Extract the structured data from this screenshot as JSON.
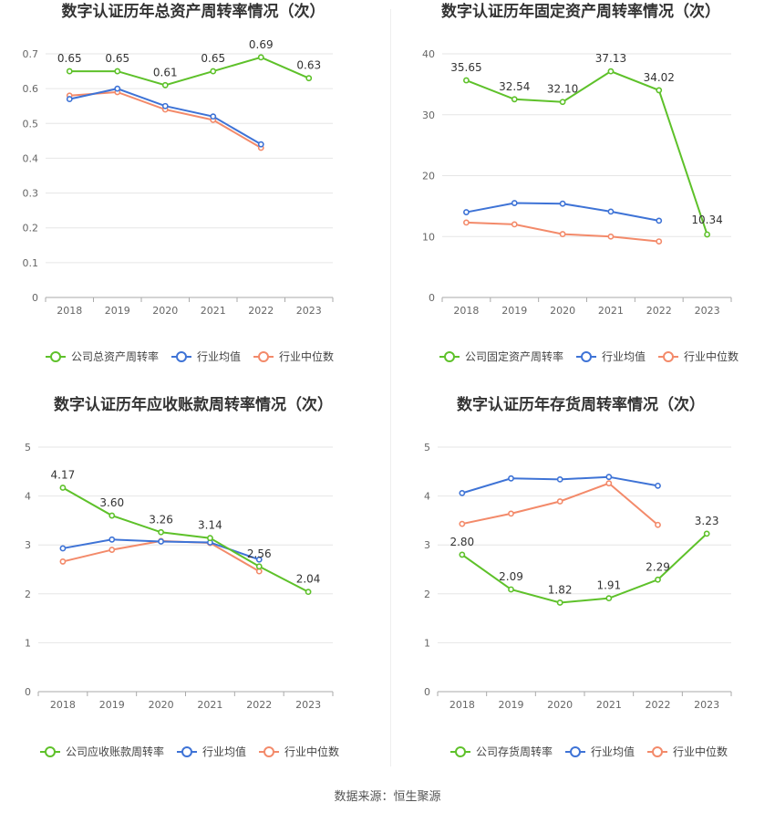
{
  "footer": "数据来源：恒生聚源",
  "legend_common": [
    "行业均值",
    "行业中位数"
  ],
  "colors": {
    "company": "#5ec12a",
    "avg": "#3e73d6",
    "median": "#f38a6a"
  },
  "chart_data": [
    {
      "type": "line",
      "title": "数字认证历年总资产周转率情况（次）",
      "categories": [
        "2018",
        "2019",
        "2020",
        "2021",
        "2022",
        "2023"
      ],
      "ylim": [
        0,
        0.7
      ],
      "yticks": [
        "0",
        "0.1",
        "0.2",
        "0.3",
        "0.4",
        "0.5",
        "0.6",
        "0.7"
      ],
      "ytick_values": [
        0,
        0.1,
        0.2,
        0.3,
        0.4,
        0.5,
        0.6,
        0.7
      ],
      "series": [
        {
          "name": "公司总资产周转率",
          "values": [
            0.65,
            0.65,
            0.61,
            0.65,
            0.69,
            0.63
          ],
          "labels": [
            "0.65",
            "0.65",
            "0.61",
            "0.65",
            "0.69",
            "0.63"
          ]
        },
        {
          "name": "行业均值",
          "values": [
            0.57,
            0.6,
            0.55,
            0.52,
            0.44,
            null
          ]
        },
        {
          "name": "行业中位数",
          "values": [
            0.58,
            0.59,
            0.54,
            0.51,
            0.43,
            null
          ]
        }
      ]
    },
    {
      "type": "line",
      "title": "数字认证历年固定资产周转率情况（次）",
      "categories": [
        "2018",
        "2019",
        "2020",
        "2021",
        "2022",
        "2023"
      ],
      "ylim": [
        0,
        40
      ],
      "yticks": [
        "0",
        "10",
        "20",
        "30",
        "40"
      ],
      "ytick_values": [
        0,
        10,
        20,
        30,
        40
      ],
      "series": [
        {
          "name": "公司固定资产周转率",
          "values": [
            35.65,
            32.54,
            32.1,
            37.13,
            34.02,
            10.34
          ],
          "labels": [
            "35.65",
            "32.54",
            "32.10",
            "37.13",
            "34.02",
            "10.34"
          ]
        },
        {
          "name": "行业均值",
          "values": [
            14.0,
            15.5,
            15.4,
            14.1,
            12.6,
            null
          ]
        },
        {
          "name": "行业中位数",
          "values": [
            12.3,
            12.0,
            10.4,
            10.0,
            9.2,
            null
          ]
        }
      ]
    },
    {
      "type": "line",
      "title": "数字认证历年应收账款周转率情况（次）",
      "categories": [
        "2018",
        "2019",
        "2020",
        "2021",
        "2022",
        "2023"
      ],
      "ylim": [
        0,
        5
      ],
      "yticks": [
        "0",
        "1",
        "2",
        "3",
        "4",
        "5"
      ],
      "ytick_values": [
        0,
        1,
        2,
        3,
        4,
        5
      ],
      "series": [
        {
          "name": "公司应收账款周转率",
          "values": [
            4.17,
            3.6,
            3.26,
            3.14,
            2.56,
            2.04
          ],
          "labels": [
            "4.17",
            "3.60",
            "3.26",
            "3.14",
            "2.56",
            "2.04"
          ]
        },
        {
          "name": "行业均值",
          "values": [
            2.93,
            3.11,
            3.07,
            3.05,
            2.7,
            null
          ]
        },
        {
          "name": "行业中位数",
          "values": [
            2.66,
            2.9,
            3.08,
            3.04,
            2.46,
            null
          ]
        }
      ]
    },
    {
      "type": "line",
      "title": "数字认证历年存货周转率情况（次）",
      "categories": [
        "2018",
        "2019",
        "2020",
        "2021",
        "2022",
        "2023"
      ],
      "ylim": [
        0,
        5
      ],
      "yticks": [
        "0",
        "1",
        "2",
        "3",
        "4",
        "5"
      ],
      "ytick_values": [
        0,
        1,
        2,
        3,
        4,
        5
      ],
      "series": [
        {
          "name": "公司存货周转率",
          "values": [
            2.8,
            2.09,
            1.82,
            1.91,
            2.29,
            3.23
          ],
          "labels": [
            "2.80",
            "2.09",
            "1.82",
            "1.91",
            "2.29",
            "3.23"
          ]
        },
        {
          "name": "行业均值",
          "values": [
            4.06,
            4.36,
            4.34,
            4.39,
            4.21,
            null
          ]
        },
        {
          "name": "行业中位数",
          "values": [
            3.43,
            3.64,
            3.89,
            4.26,
            3.41,
            null
          ]
        }
      ]
    }
  ]
}
